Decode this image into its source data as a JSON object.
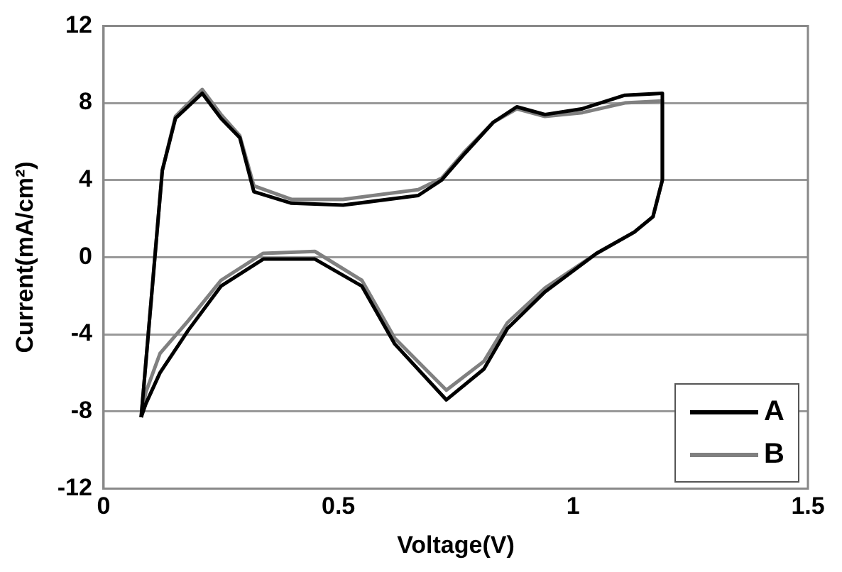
{
  "chart_data": {
    "type": "line",
    "xlabel": "Voltage(V)",
    "ylabel": "Current(mA/cm²)",
    "xlim": [
      0,
      1.5
    ],
    "xticks": [
      0,
      0.5,
      1,
      1.5
    ],
    "ylim": [
      -12,
      12
    ],
    "yticks": [
      -12,
      -8,
      -4,
      0,
      4,
      8,
      12
    ],
    "grid": "y",
    "legend": "bottom right",
    "series": [
      {
        "name": "A",
        "color": "#000000",
        "x": [
          0.08,
          0.125,
          0.153,
          0.21,
          0.25,
          0.29,
          0.32,
          0.4,
          0.51,
          0.67,
          0.72,
          0.77,
          0.83,
          0.88,
          0.94,
          1.02,
          1.11,
          1.19
        ],
        "values": [
          -8.3,
          4.5,
          7.2,
          8.5,
          7.2,
          6.2,
          3.4,
          2.8,
          2.7,
          3.2,
          4.0,
          5.4,
          7.0,
          7.8,
          7.4,
          7.7,
          8.4,
          8.5
        ]
      },
      {
        "color": "#000000",
        "x": [
          1.19,
          1.19,
          1.17,
          1.13,
          1.05,
          0.94,
          0.86,
          0.81,
          0.73,
          0.62,
          0.55,
          0.45,
          0.34,
          0.25,
          0.18,
          0.12,
          0.09,
          0.08
        ],
        "values": [
          8.5,
          4.0,
          2.1,
          1.3,
          0.2,
          -1.8,
          -3.7,
          -5.8,
          -7.4,
          -4.5,
          -1.5,
          -0.1,
          -0.1,
          -1.5,
          -3.8,
          -6.0,
          -7.6,
          -8.3
        ]
      },
      {
        "name": "B",
        "color": "#808080",
        "x": [
          0.08,
          0.125,
          0.153,
          0.21,
          0.25,
          0.29,
          0.32,
          0.4,
          0.51,
          0.67,
          0.72,
          0.77,
          0.83,
          0.88,
          0.94,
          1.02,
          1.11,
          1.19
        ],
        "values": [
          -8.3,
          4.5,
          7.3,
          8.7,
          7.4,
          6.3,
          3.7,
          3.0,
          3.0,
          3.5,
          4.1,
          5.5,
          7.0,
          7.7,
          7.3,
          7.5,
          8.0,
          8.1
        ]
      },
      {
        "color": "#808080",
        "x": [
          1.19,
          1.19,
          1.17,
          1.13,
          1.05,
          0.94,
          0.86,
          0.81,
          0.73,
          0.62,
          0.55,
          0.45,
          0.34,
          0.25,
          0.18,
          0.12,
          0.09,
          0.08
        ],
        "values": [
          8.1,
          4.0,
          2.1,
          1.3,
          0.2,
          -1.6,
          -3.4,
          -5.4,
          -6.9,
          -4.2,
          -1.2,
          0.3,
          0.2,
          -1.2,
          -3.3,
          -5.0,
          -7.0,
          -8.3
        ]
      }
    ]
  }
}
